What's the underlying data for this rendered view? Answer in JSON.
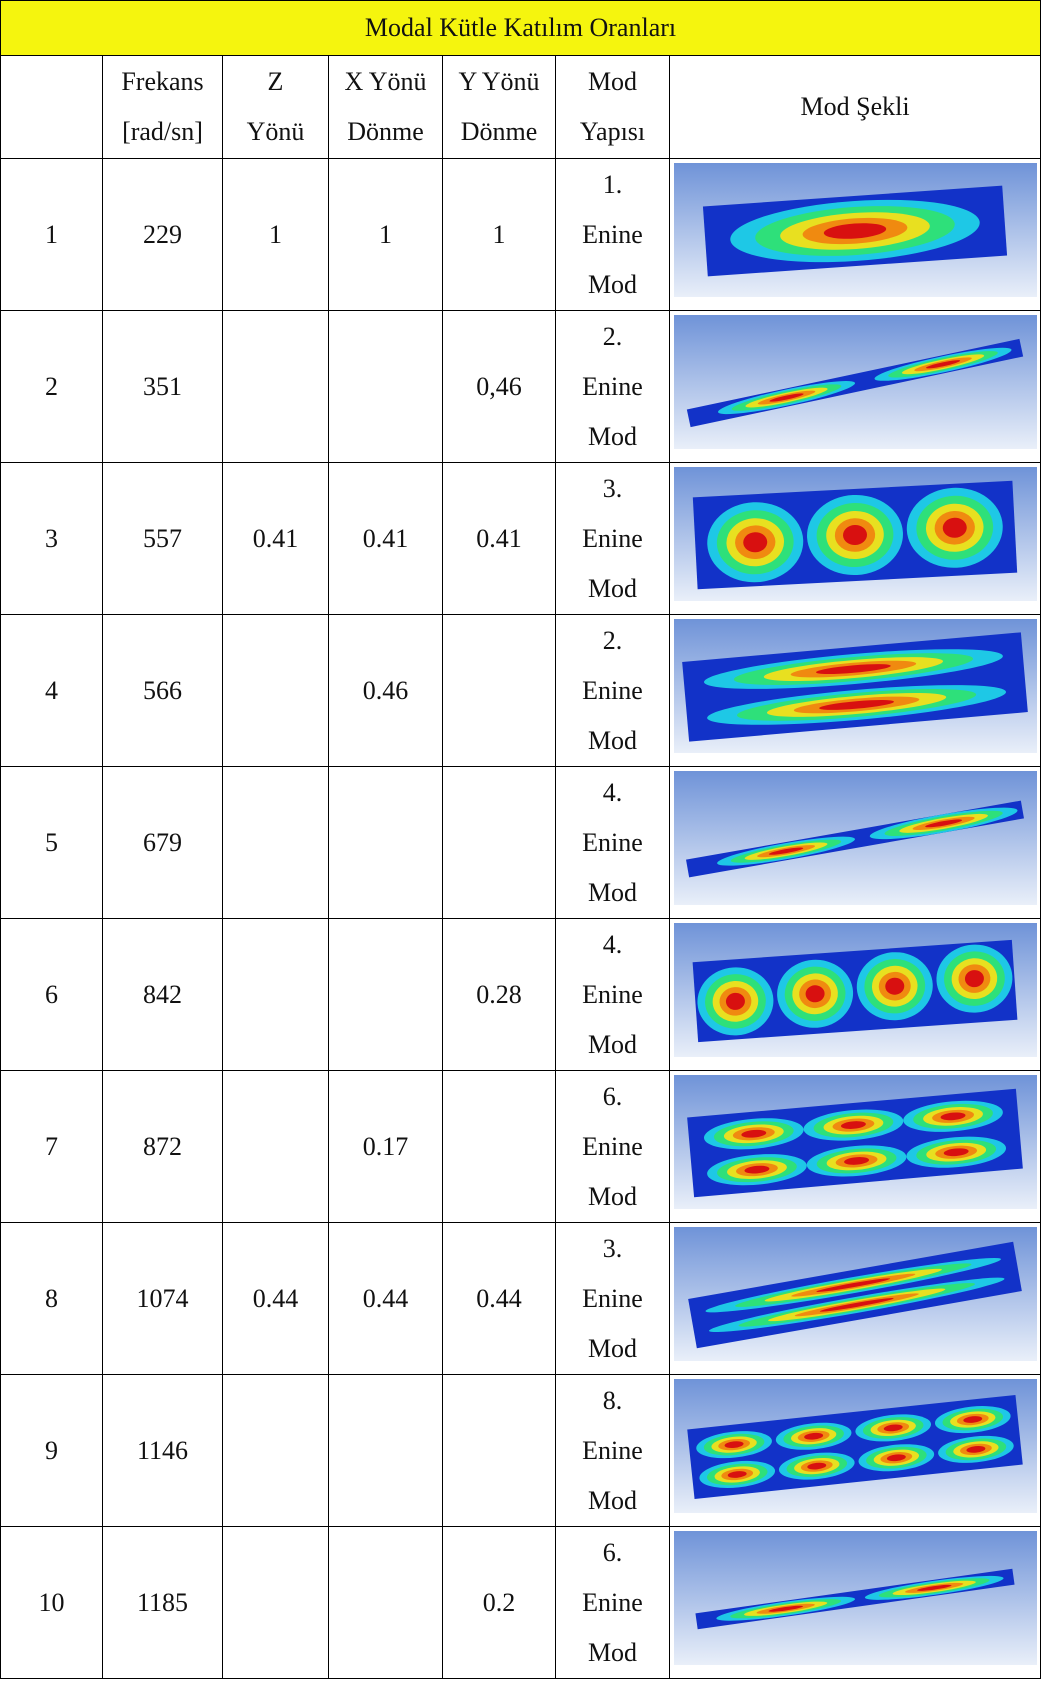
{
  "title": "Modal Kütle Katılım Oranları",
  "headers": [
    [
      "Frekans",
      "[rad/sn]"
    ],
    [
      "Z",
      "Yönü"
    ],
    [
      "X Yönü",
      "Dönme"
    ],
    [
      "Y Yönü",
      "Dönme"
    ],
    [
      "Mod",
      "Yapısı"
    ],
    [
      "Mod Şekli"
    ]
  ],
  "rows": [
    {
      "no": "1",
      "freq": "229",
      "z": "1",
      "x": "1",
      "y": "1",
      "mod": [
        "1.",
        "Enine",
        "Mod"
      ]
    },
    {
      "no": "2",
      "freq": "351",
      "y": "0,46",
      "mod": [
        "2.",
        "Enine",
        "Mod"
      ]
    },
    {
      "no": "3",
      "freq": "557",
      "z": "0.41",
      "x": "0.41",
      "y": "0.41",
      "mod": [
        "3.",
        "Enine",
        "Mod"
      ]
    },
    {
      "no": "4",
      "freq": "566",
      "x": "0.46",
      "mod": [
        "2.",
        "Enine",
        "Mod"
      ]
    },
    {
      "no": "5",
      "freq": "679",
      "mod": [
        "4.",
        "Enine",
        "Mod"
      ]
    },
    {
      "no": "6",
      "freq": "842",
      "y": "0.28",
      "mod": [
        "4.",
        "Enine",
        "Mod"
      ]
    },
    {
      "no": "7",
      "freq": "872",
      "x": "0.17",
      "mod": [
        "6.",
        "Enine",
        "Mod"
      ]
    },
    {
      "no": "8",
      "freq": "1074",
      "z": "0.44",
      "x": "0.44",
      "y": "0.44",
      "mod": [
        "3.",
        "Enine",
        "Mod"
      ]
    },
    {
      "no": "9",
      "freq": "1146",
      "mod": [
        "8.",
        "Enine",
        "Mod"
      ]
    },
    {
      "no": "10",
      "freq": "1185",
      "y": "0.2",
      "mod": [
        "6.",
        "Enine",
        "Mod"
      ]
    }
  ]
}
